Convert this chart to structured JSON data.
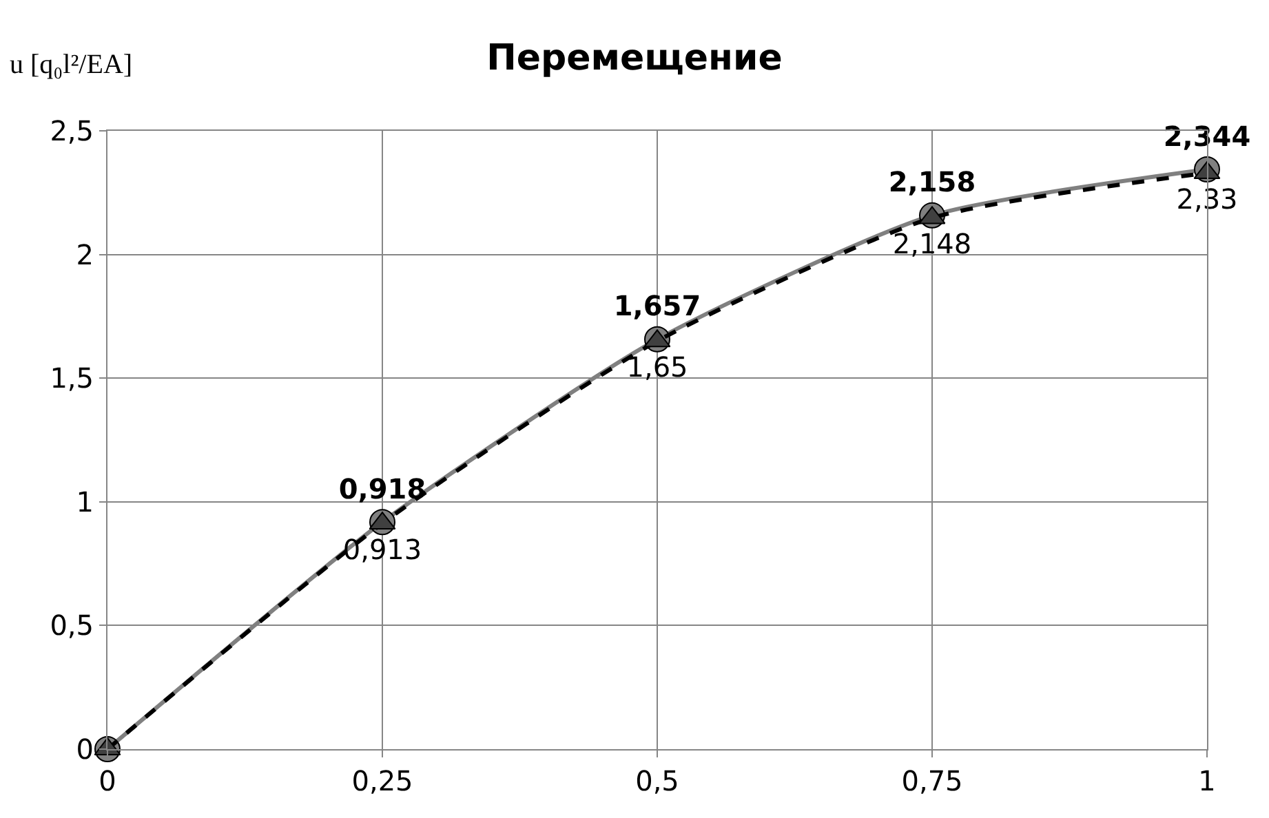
{
  "chart_data": {
    "type": "line",
    "title": "Перемещение",
    "ylabel": "u [q₀l²/EA]",
    "x": [
      0,
      0.25,
      0.5,
      0.75,
      1
    ],
    "xlim": [
      0,
      1
    ],
    "xticks": [
      0,
      {
        "value": 0.25,
        "label": "0,25"
      },
      {
        "value": 0.5,
        "label": "0,5"
      },
      {
        "value": 0.75,
        "label": "0,75"
      },
      1
    ],
    "ylim": [
      0,
      2.5
    ],
    "yticks": [
      0,
      {
        "value": 0.5,
        "label": "0,5"
      },
      1,
      {
        "value": 1.5,
        "label": "1,5"
      },
      2,
      {
        "value": 2.5,
        "label": "2,5"
      }
    ],
    "grid": true,
    "series": [
      {
        "color": "#808080",
        "values": [
          0,
          0.918,
          1.657,
          2.158,
          2.344
        ],
        "marker": "circle",
        "line_style": "solid",
        "value_labels": [
          null,
          "0,918",
          "1,657",
          "2,158",
          "2,344"
        ]
      },
      {
        "color": "#000000",
        "values": [
          0,
          0.913,
          1.65,
          2.148,
          2.33
        ],
        "marker": "triangle",
        "line_style": "dashed",
        "value_labels": [
          null,
          "0,913",
          "1,65",
          "2,148",
          "2,33"
        ]
      }
    ]
  }
}
